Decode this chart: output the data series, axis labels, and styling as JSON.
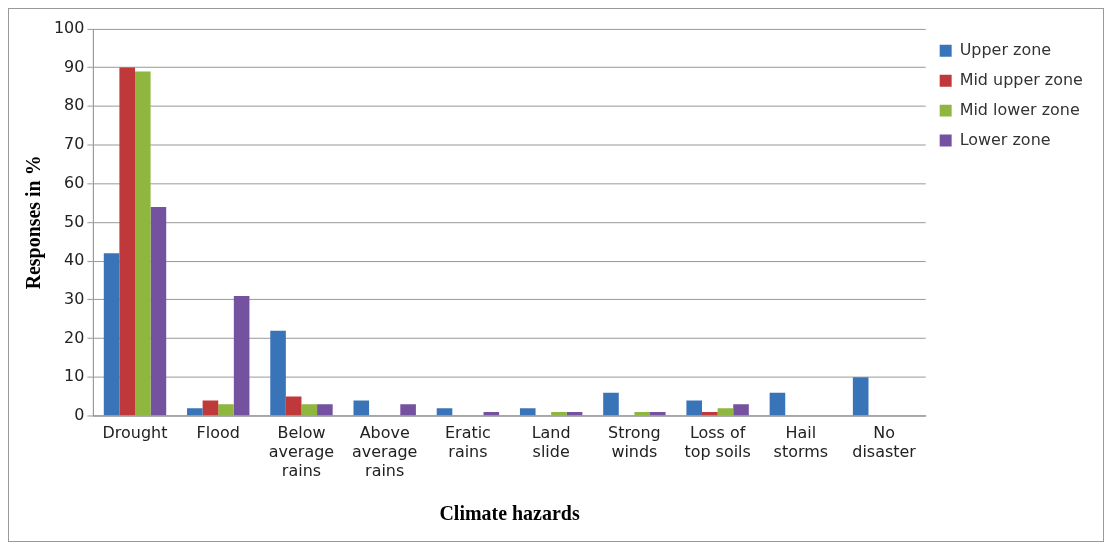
{
  "chart_data": {
    "type": "bar",
    "xlabel": "Climate hazards",
    "ylabel": "Responses in %",
    "categories": [
      "Drought",
      "Flood",
      "Below average rains",
      "Above average rains",
      "Eratic rains",
      "Land slide",
      "Strong winds",
      "Loss of top soils",
      "Hail storms",
      "No disaster"
    ],
    "series": [
      {
        "name": "Upper zone",
        "color": "#3a74b8",
        "values": [
          42,
          2,
          22,
          4,
          2,
          2,
          6,
          4,
          6,
          10
        ]
      },
      {
        "name": "Mid upper zone",
        "color": "#c0393a",
        "values": [
          90,
          4,
          5,
          0,
          0,
          0,
          0,
          1,
          0,
          0
        ]
      },
      {
        "name": "Mid lower zone",
        "color": "#8fb63f",
        "values": [
          89,
          3,
          3,
          0,
          0,
          1,
          1,
          2,
          0,
          0
        ]
      },
      {
        "name": "Lower zone",
        "color": "#7552a0",
        "values": [
          54,
          31,
          3,
          3,
          1,
          1,
          1,
          3,
          0,
          0
        ]
      }
    ],
    "ylim": [
      0,
      100
    ],
    "yticks": [
      0,
      10,
      20,
      30,
      40,
      50,
      60,
      70,
      80,
      90,
      100
    ],
    "grid": "y",
    "legend": "top right"
  }
}
